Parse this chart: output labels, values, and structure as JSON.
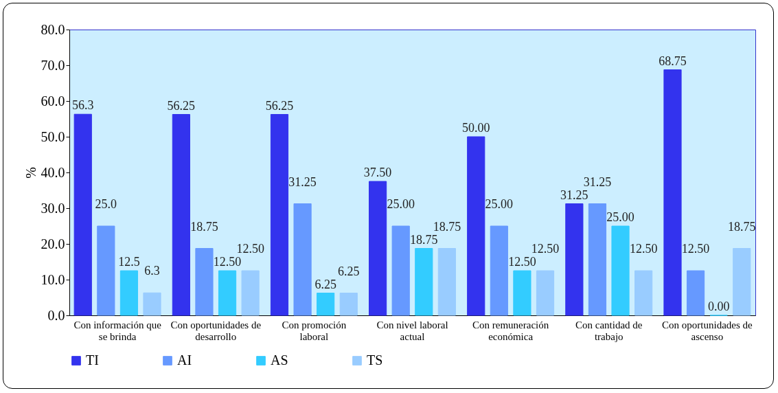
{
  "chart_data": {
    "type": "bar",
    "ylabel": "%",
    "categories": [
      "Con información que se brinda",
      "Con oportunidades de desarrollo",
      "Con promoción laboral",
      "Con nivel laboral actual",
      "Con remuneración económica",
      "Con cantidad de trabajo",
      "Con oportunidades de ascenso"
    ],
    "series": [
      {
        "name": "TI",
        "color": "#3333ee",
        "values": [
          56.3,
          56.25,
          56.25,
          37.5,
          50,
          31.25,
          68.75
        ],
        "value_labels": [
          "56.3",
          "56.25",
          "56.25",
          "37.50",
          "50.00",
          "31.25",
          "68.75"
        ]
      },
      {
        "name": "AI",
        "color": "#6699ff",
        "values": [
          25,
          18.75,
          31.25,
          25,
          25,
          31.25,
          12.5
        ],
        "value_labels": [
          "25.0",
          "18.75",
          "31.25",
          "25.00",
          "25.00",
          "31.25",
          "12.50"
        ]
      },
      {
        "name": "AS",
        "color": "#33ccff",
        "values": [
          12.5,
          12.5,
          6.25,
          18.75,
          12.5,
          25,
          0
        ],
        "value_labels": [
          "12.5",
          "12.50",
          "6.25",
          "18.75",
          "12.50",
          "25.00",
          "0.00"
        ]
      },
      {
        "name": "TS",
        "color": "#99ccff",
        "values": [
          6.3,
          12.5,
          6.25,
          18.75,
          12.5,
          12.5,
          18.75
        ],
        "value_labels": [
          "6.3",
          "12.50",
          "6.25",
          "18.75",
          "12.50",
          "12.50",
          "18.75"
        ]
      }
    ],
    "ylim": [
      0,
      80
    ],
    "yticks": [
      {
        "value": 0,
        "label": "0.0"
      },
      {
        "value": 10,
        "label": "10.0"
      },
      {
        "value": 20,
        "label": "20.0"
      },
      {
        "value": 30,
        "label": "30.0"
      },
      {
        "value": 40,
        "label": "40.0"
      },
      {
        "value": 50,
        "label": "50.0"
      },
      {
        "value": 60,
        "label": "60.0"
      },
      {
        "value": 70,
        "label": "70.0"
      },
      {
        "value": 80,
        "label": "80.0"
      }
    ],
    "grid": false,
    "legend": "bottom"
  }
}
